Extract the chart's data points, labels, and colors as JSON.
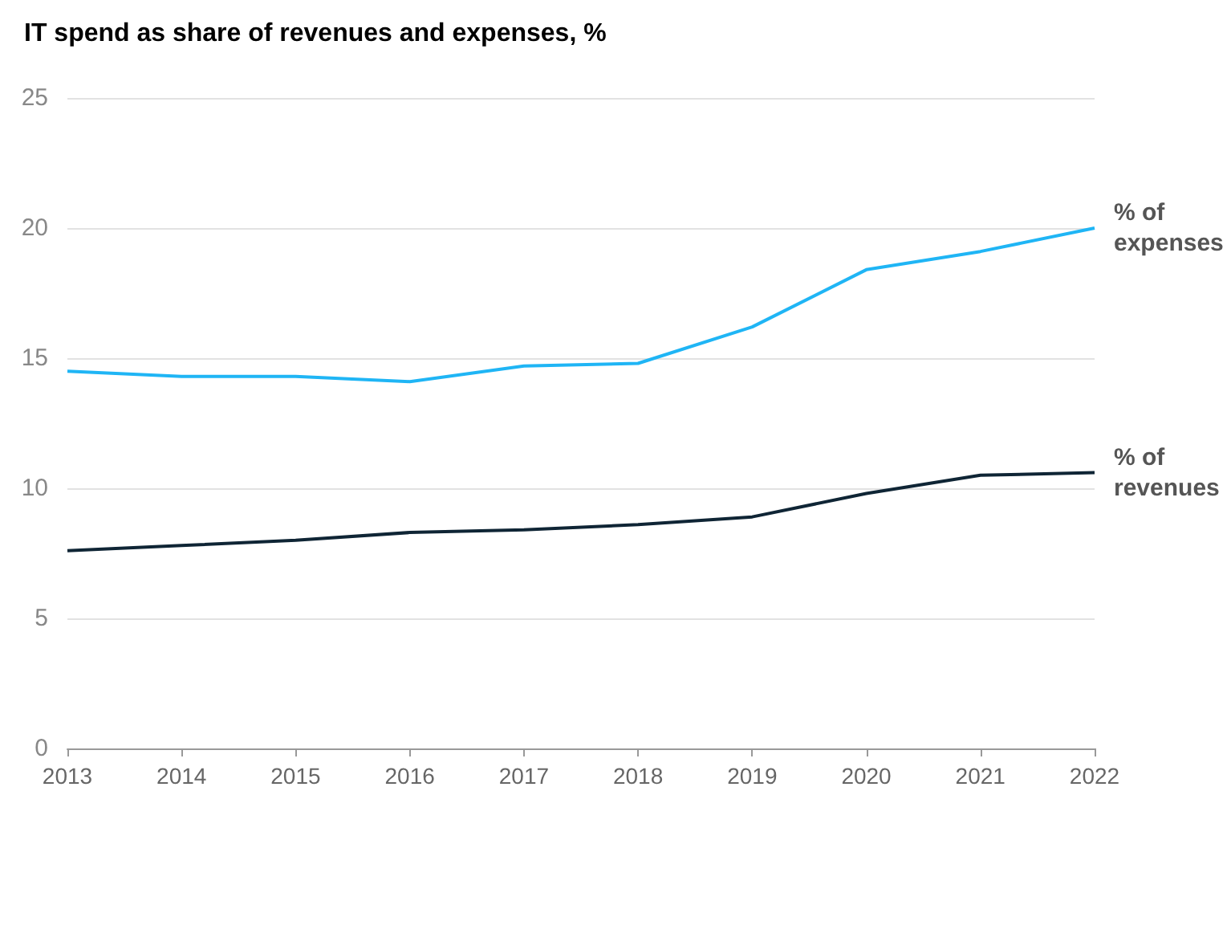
{
  "chart_data": {
    "type": "line",
    "title": "IT spend as share of revenues and expenses, %",
    "categories": [
      "2013",
      "2014",
      "2015",
      "2016",
      "2017",
      "2018",
      "2019",
      "2020",
      "2021",
      "2022"
    ],
    "series": [
      {
        "name": "% of expenses",
        "color": "#1fb5f5",
        "values": [
          14.5,
          14.3,
          14.3,
          14.1,
          14.7,
          14.8,
          16.2,
          18.4,
          19.1,
          20.0
        ]
      },
      {
        "name": "% of revenues",
        "color": "#0f2535",
        "values": [
          7.6,
          7.8,
          8.0,
          8.3,
          8.4,
          8.6,
          8.9,
          9.8,
          10.5,
          10.6
        ]
      }
    ],
    "ylim": [
      0,
      25
    ],
    "yticks": [
      0,
      5,
      10,
      15,
      20,
      25
    ],
    "grid": "y",
    "legend": false,
    "marker": "none",
    "line_style": "solid"
  }
}
